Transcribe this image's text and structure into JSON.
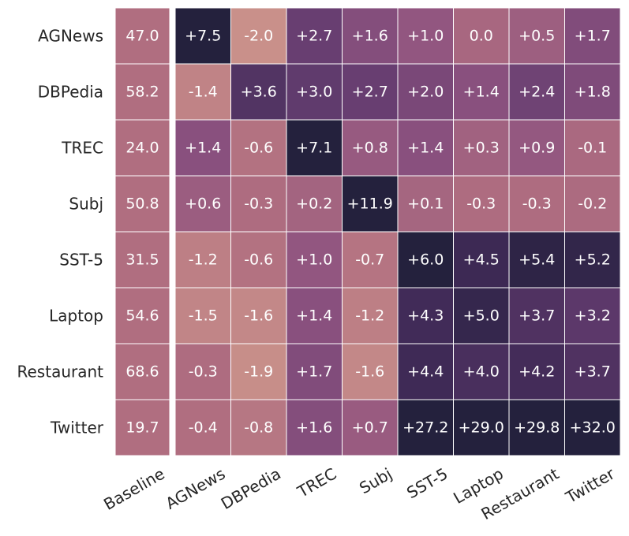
{
  "chart_data": {
    "type": "heatmap",
    "title": "",
    "xlabel": "",
    "ylabel": "",
    "rows": [
      "AGNews",
      "DBPedia",
      "TREC",
      "Subj",
      "SST-5",
      "Laptop",
      "Restaurant",
      "Twitter"
    ],
    "columns": [
      "Baseline",
      "AGNews",
      "DBPedia",
      "TREC",
      "Subj",
      "SST-5",
      "Laptop",
      "Restaurant",
      "Twitter"
    ],
    "cells": [
      [
        "47.0",
        "+7.5",
        "-2.0",
        "+2.7",
        "+1.6",
        "+1.0",
        "0.0",
        "+0.5",
        "+1.7"
      ],
      [
        "58.2",
        "-1.4",
        "+3.6",
        "+3.0",
        "+2.7",
        "+2.0",
        "+1.4",
        "+2.4",
        "+1.8"
      ],
      [
        "24.0",
        "+1.4",
        "-0.6",
        "+7.1",
        "+0.8",
        "+1.4",
        "+0.3",
        "+0.9",
        "-0.1"
      ],
      [
        "50.8",
        "+0.6",
        "-0.3",
        "+0.2",
        "+11.9",
        "+0.1",
        "-0.3",
        "-0.3",
        "-0.2"
      ],
      [
        "31.5",
        "-1.2",
        "-0.6",
        "+1.0",
        "-0.7",
        "+6.0",
        "+4.5",
        "+5.4",
        "+5.2"
      ],
      [
        "54.6",
        "-1.5",
        "-1.6",
        "+1.4",
        "-1.2",
        "+4.3",
        "+5.0",
        "+3.7",
        "+3.2"
      ],
      [
        "68.6",
        "-0.3",
        "-1.9",
        "+1.7",
        "-1.6",
        "+4.4",
        "+4.0",
        "+4.2",
        "+3.7"
      ],
      [
        "19.7",
        "-0.4",
        "-0.8",
        "+1.6",
        "+0.7",
        "+27.2",
        "+29.0",
        "+29.8",
        "+32.0"
      ]
    ],
    "color_scale": {
      "vmin": -2.0,
      "vmax": 6.0,
      "stops": [
        "#c9908a",
        "#b06e80",
        "#8e5380",
        "#653d70",
        "#3f2a56",
        "#24213d"
      ],
      "baseline_color": "#b06e80"
    },
    "colorbar": false
  }
}
